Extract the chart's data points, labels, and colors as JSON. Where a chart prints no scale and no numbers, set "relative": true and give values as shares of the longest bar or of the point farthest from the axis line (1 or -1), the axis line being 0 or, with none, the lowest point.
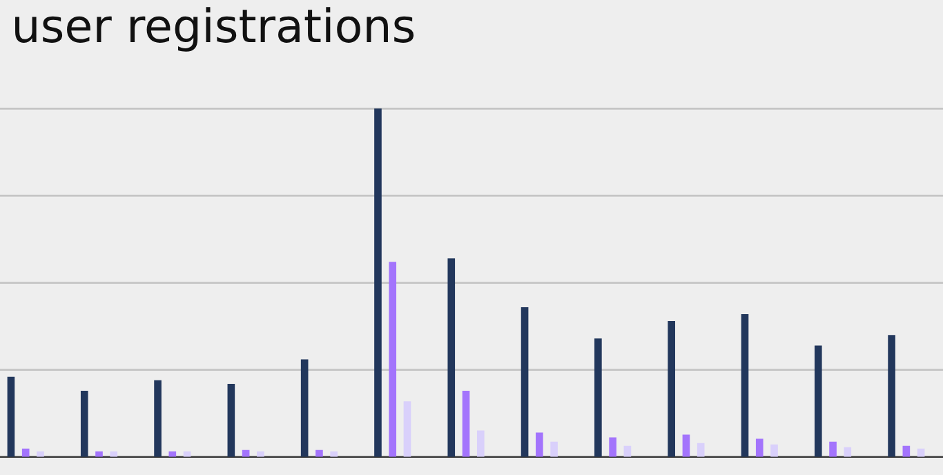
{
  "chart_data": {
    "type": "bar",
    "title": "user registrations",
    "relative": true,
    "grid": "y",
    "legend": false,
    "categories": [
      null,
      null,
      null,
      null,
      null,
      null,
      null,
      null,
      null,
      null,
      null,
      null,
      null
    ],
    "series": [
      {
        "color": "#22375c",
        "values": [
          0.23,
          0.19,
          0.22,
          0.21,
          0.28,
          1,
          0.57,
          0.43,
          0.34,
          0.39,
          0.41,
          0.32,
          0.35
        ]
      },
      {
        "color": "#a374fc",
        "values": [
          0.024,
          0.016,
          0.016,
          0.02,
          0.02,
          0.56,
          0.19,
          0.07,
          0.056,
          0.064,
          0.052,
          0.044,
          0.032
        ]
      },
      {
        "color": "#d9d0fb",
        "values": [
          0.016,
          0.016,
          0.016,
          0.016,
          0.016,
          0.16,
          0.076,
          0.044,
          0.032,
          0.04,
          0.036,
          0.028,
          0.024
        ]
      }
    ]
  }
}
